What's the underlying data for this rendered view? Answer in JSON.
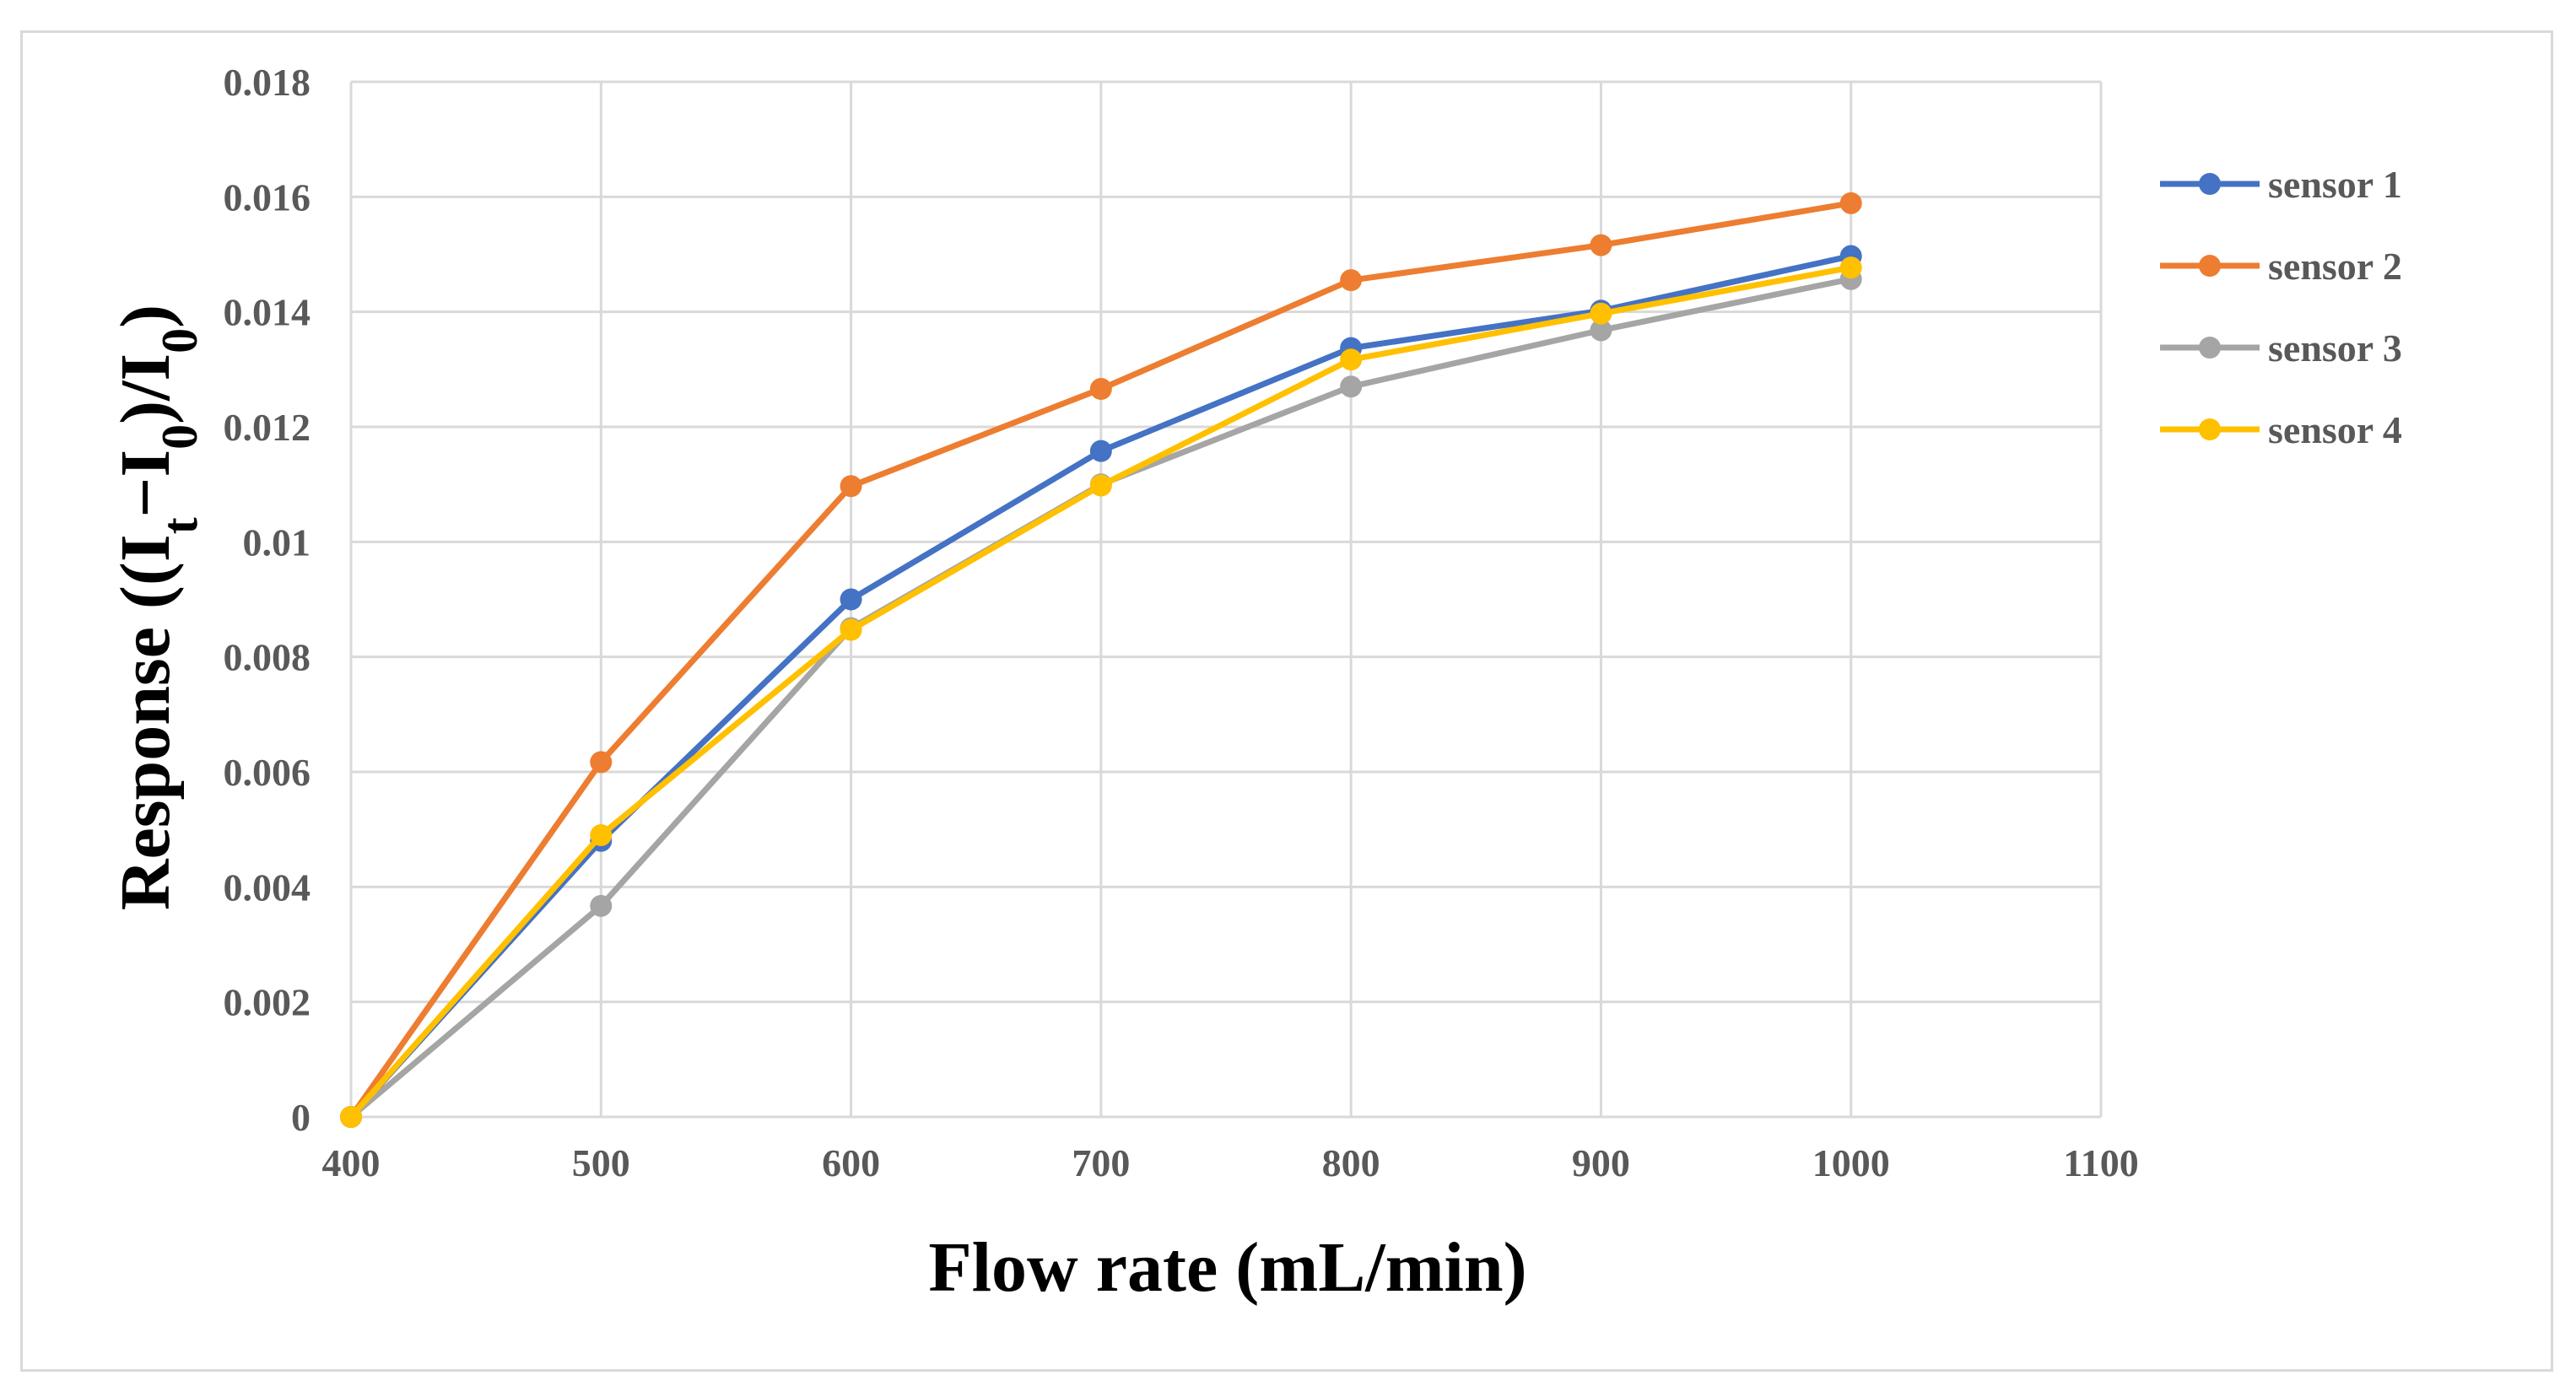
{
  "chart_data": {
    "type": "line",
    "title": "",
    "xlabel": "Flow rate (mL/min)",
    "ylabel": {
      "prefix": "Response ((I",
      "sub1": "t",
      "mid": "−I",
      "sub2": "0",
      "mid2": ")/I",
      "sub3": "0",
      "suffix": ")"
    },
    "xlim": [
      400,
      1100
    ],
    "ylim": [
      0,
      0.018
    ],
    "xticks": [
      400,
      500,
      600,
      700,
      800,
      900,
      1000,
      1100
    ],
    "yticks": [
      0,
      0.002,
      0.004,
      0.006,
      0.008,
      0.01,
      0.012,
      0.014,
      0.016,
      0.018
    ],
    "ytick_labels": [
      "0",
      "0.002",
      "0.004",
      "0.006",
      "0.008",
      "0.01",
      "0.012",
      "0.014",
      "0.016",
      "0.018"
    ],
    "x": [
      400,
      500,
      600,
      700,
      800,
      900,
      1000
    ],
    "grid": true,
    "legend_position": "right",
    "series": [
      {
        "name": "sensor 1",
        "color": "#4472c4",
        "values": [
          0,
          0.0048,
          0.009,
          0.01158,
          0.01337,
          0.01402,
          0.01497
        ]
      },
      {
        "name": "sensor 2",
        "color": "#ed7d31",
        "values": [
          0,
          0.00617,
          0.01097,
          0.01266,
          0.01455,
          0.01516,
          0.01589
        ]
      },
      {
        "name": "sensor 3",
        "color": "#a5a5a5",
        "values": [
          0,
          0.00367,
          0.0085,
          0.011,
          0.0127,
          0.01368,
          0.01457
        ]
      },
      {
        "name": "sensor 4",
        "color": "#ffc000",
        "values": [
          0,
          0.0049,
          0.00847,
          0.01098,
          0.01317,
          0.01397,
          0.01477
        ]
      }
    ]
  }
}
